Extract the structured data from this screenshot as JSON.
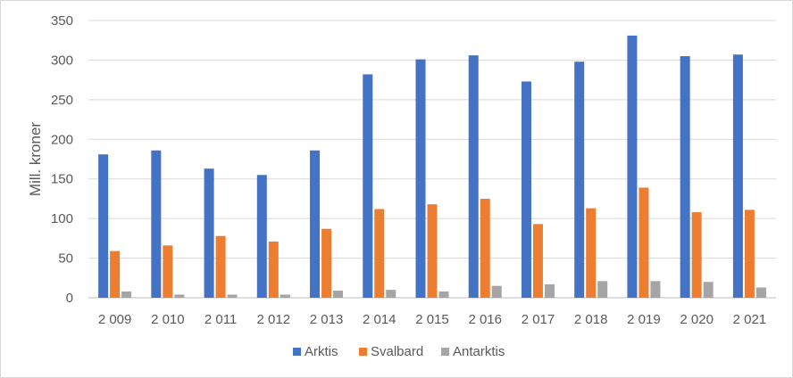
{
  "chart_data": {
    "type": "bar",
    "title": "",
    "xlabel": "",
    "ylabel": "Mill. kroner",
    "ylim": [
      0,
      350
    ],
    "yticks": [
      "0",
      "50",
      "100",
      "150",
      "200",
      "250",
      "300",
      "350"
    ],
    "grid": true,
    "legend_position": "bottom",
    "categories": [
      "2 009",
      "2 010",
      "2 011",
      "2 012",
      "2 013",
      "2 014",
      "2 015",
      "2 016",
      "2 017",
      "2 018",
      "2 019",
      "2 020",
      "2 021"
    ],
    "series": [
      {
        "name": "Arktis",
        "color": "#4472c4",
        "values": [
          181,
          186,
          163,
          155,
          186,
          282,
          301,
          306,
          273,
          298,
          331,
          305,
          307
        ]
      },
      {
        "name": "Svalbard",
        "color": "#ed7d31",
        "values": [
          59,
          66,
          78,
          71,
          87,
          112,
          118,
          125,
          93,
          113,
          139,
          108,
          111
        ]
      },
      {
        "name": "Antarktis",
        "color": "#a5a5a5",
        "values": [
          8,
          4,
          4,
          4,
          9,
          10,
          8,
          15,
          17,
          21,
          21,
          20,
          13
        ]
      }
    ]
  }
}
